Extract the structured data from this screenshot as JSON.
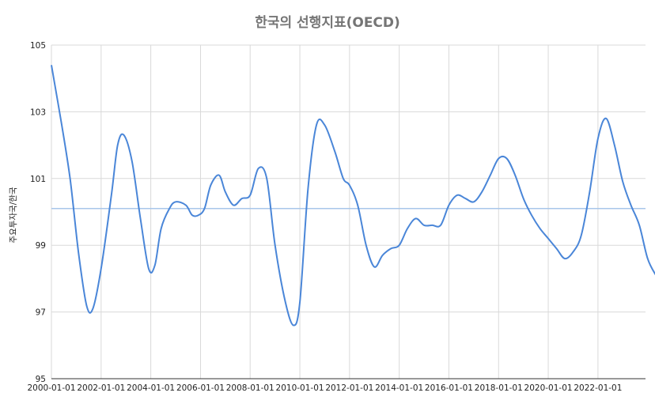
{
  "chart_data": {
    "type": "line",
    "title": "한국의 선행지표(OECD)",
    "xlabel": "",
    "ylabel": "주요투자국/한국",
    "ylim": [
      95,
      105
    ],
    "yticks": [
      95,
      97,
      99,
      101,
      103,
      105
    ],
    "xlim": [
      "2000-01-01",
      "2023-12-01"
    ],
    "xticks": [
      "2000-01-01",
      "2002-01-01",
      "2004-01-01",
      "2006-01-01",
      "2008-01-01",
      "2010-01-01",
      "2012-01-01",
      "2014-01-01",
      "2016-01-01",
      "2018-01-01",
      "2020-01-01",
      "2022-01-01"
    ],
    "grid": true,
    "reference_line": {
      "value": 100.1,
      "color": "#a8c6ea"
    },
    "series": [
      {
        "color": "#4a86d8",
        "points": [
          [
            "2000-01-01",
            104.4
          ],
          [
            "2000-06-01",
            102.6
          ],
          [
            "2000-10-01",
            101.0
          ],
          [
            "2001-02-01",
            98.8
          ],
          [
            "2001-06-01",
            97.2
          ],
          [
            "2001-09-01",
            97.1
          ],
          [
            "2002-01-01",
            98.3
          ],
          [
            "2002-06-01",
            100.5
          ],
          [
            "2002-09-01",
            102.0
          ],
          [
            "2002-12-01",
            102.3
          ],
          [
            "2003-04-01",
            101.5
          ],
          [
            "2003-08-01",
            99.8
          ],
          [
            "2003-12-01",
            98.3
          ],
          [
            "2004-03-01",
            98.4
          ],
          [
            "2004-06-01",
            99.5
          ],
          [
            "2004-10-01",
            100.1
          ],
          [
            "2005-01-01",
            100.3
          ],
          [
            "2005-06-01",
            100.2
          ],
          [
            "2005-09-01",
            99.9
          ],
          [
            "2005-12-01",
            99.9
          ],
          [
            "2006-03-01",
            100.1
          ],
          [
            "2006-06-01",
            100.8
          ],
          [
            "2006-10-01",
            101.1
          ],
          [
            "2007-01-01",
            100.6
          ],
          [
            "2007-05-01",
            100.2
          ],
          [
            "2007-09-01",
            100.4
          ],
          [
            "2008-01-01",
            100.5
          ],
          [
            "2008-05-01",
            101.3
          ],
          [
            "2008-09-01",
            101.0
          ],
          [
            "2009-01-01",
            99.0
          ],
          [
            "2009-06-01",
            97.3
          ],
          [
            "2009-10-01",
            96.6
          ],
          [
            "2010-01-01",
            97.3
          ],
          [
            "2010-05-01",
            100.7
          ],
          [
            "2010-09-01",
            102.6
          ],
          [
            "2011-01-01",
            102.6
          ],
          [
            "2011-06-01",
            101.8
          ],
          [
            "2011-10-01",
            101.0
          ],
          [
            "2012-01-01",
            100.8
          ],
          [
            "2012-05-01",
            100.2
          ],
          [
            "2012-09-01",
            99.0
          ],
          [
            "2013-01-01",
            98.35
          ],
          [
            "2013-05-01",
            98.7
          ],
          [
            "2013-09-01",
            98.9
          ],
          [
            "2014-01-01",
            99.0
          ],
          [
            "2014-05-01",
            99.5
          ],
          [
            "2014-09-01",
            99.8
          ],
          [
            "2015-01-01",
            99.6
          ],
          [
            "2015-05-01",
            99.6
          ],
          [
            "2015-09-01",
            99.6
          ],
          [
            "2016-01-01",
            100.2
          ],
          [
            "2016-05-01",
            100.5
          ],
          [
            "2016-09-01",
            100.4
          ],
          [
            "2017-01-01",
            100.3
          ],
          [
            "2017-05-01",
            100.6
          ],
          [
            "2017-09-01",
            101.1
          ],
          [
            "2018-01-01",
            101.6
          ],
          [
            "2018-05-01",
            101.6
          ],
          [
            "2018-09-01",
            101.1
          ],
          [
            "2019-01-01",
            100.4
          ],
          [
            "2019-05-01",
            99.9
          ],
          [
            "2019-09-01",
            99.5
          ],
          [
            "2020-01-01",
            99.2
          ],
          [
            "2020-05-01",
            98.9
          ],
          [
            "2020-09-01",
            98.6
          ],
          [
            "2021-01-01",
            98.8
          ],
          [
            "2021-05-01",
            99.3
          ],
          [
            "2021-09-01",
            100.6
          ],
          [
            "2022-01-01",
            102.2
          ],
          [
            "2022-05-01",
            102.8
          ],
          [
            "2022-09-01",
            102.0
          ],
          [
            "2023-01-01",
            100.9
          ],
          [
            "2023-05-01",
            100.2
          ],
          [
            "2023-09-01",
            99.6
          ],
          [
            "2024-01-01",
            98.6
          ],
          [
            "2024-05-01",
            98.1
          ]
        ]
      }
    ]
  }
}
